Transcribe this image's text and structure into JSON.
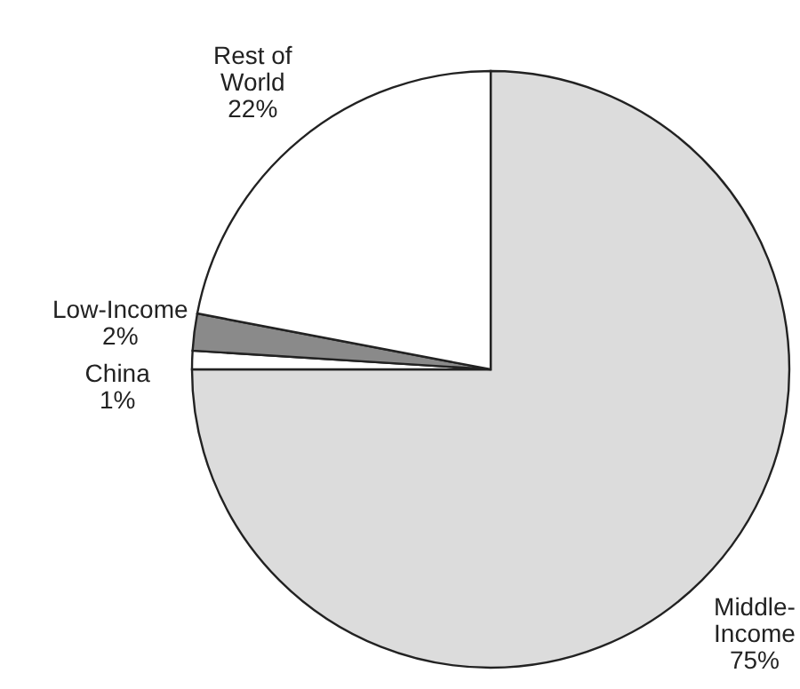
{
  "chart_data": {
    "type": "pie",
    "categories": [
      "Middle-Income",
      "China",
      "Low-Income",
      "Rest of World"
    ],
    "values": [
      75,
      1,
      2,
      22
    ],
    "value_labels": [
      "75%",
      "1%",
      "2%",
      "22%"
    ],
    "colors": [
      "#dcdcdc",
      "#ffffff",
      "#8a8a8a",
      "#ffffff"
    ]
  }
}
